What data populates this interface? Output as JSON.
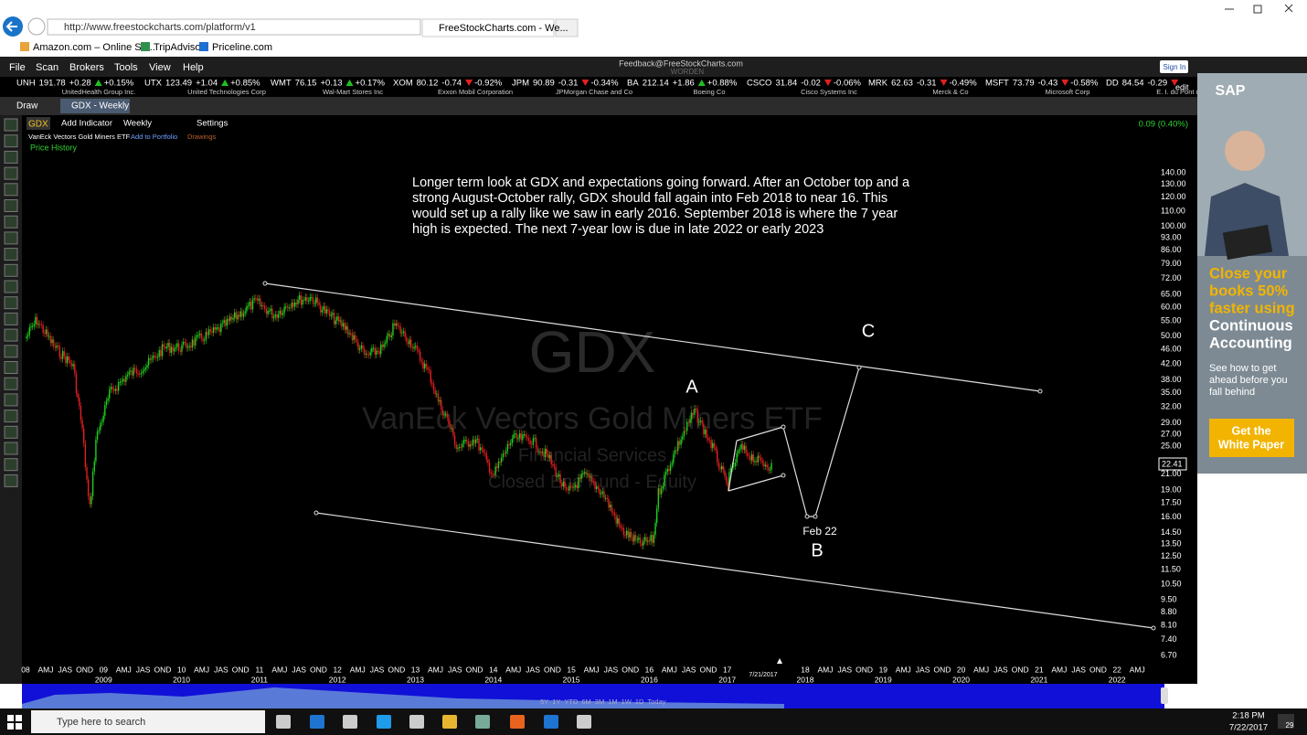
{
  "browser": {
    "url": "http://www.freestockcharts.com/platform/v1",
    "tab": "FreeStockCharts.com - We...",
    "favorites": [
      "Amazon.com – Online Sh...",
      "TripAdvisor",
      "Priceline.com"
    ]
  },
  "menu": {
    "items": [
      "File",
      "Scan",
      "Brokers",
      "Tools",
      "View",
      "Help"
    ],
    "feedback": "Feedback@FreeStockCharts.com",
    "brand": "WORDEN",
    "sign_in": "Sign In"
  },
  "ticker": [
    {
      "symbol": "UNH",
      "price": "191.78",
      "change": "+0.28",
      "percent": "+0.15%",
      "company": "UnitedHealth Group Inc."
    },
    {
      "symbol": "UTX",
      "price": "123.49",
      "change": "+1.04",
      "percent": "+0.85%",
      "company": "United Technologies Corp"
    },
    {
      "symbol": "WMT",
      "price": "76.15",
      "change": "+0.13",
      "percent": "+0.17%",
      "company": "Wal-Mart Stores Inc"
    },
    {
      "symbol": "XOM",
      "price": "80.12",
      "change": "-0.74",
      "percent": "-0.92%",
      "company": "Exxon Mobil Corporation"
    },
    {
      "symbol": "JPM",
      "price": "90.89",
      "change": "-0.31",
      "percent": "-0.34%",
      "company": "JPMorgan Chase and Co"
    },
    {
      "symbol": "BA",
      "price": "212.14",
      "change": "+1.86",
      "percent": "+0.88%",
      "company": "Boeing Co"
    },
    {
      "symbol": "CSCO",
      "price": "31.84",
      "change": "-0.02",
      "percent": "-0.06%",
      "company": "Cisco Systems Inc"
    },
    {
      "symbol": "MRK",
      "price": "62.63",
      "change": "-0.31",
      "percent": "-0.49%",
      "company": "Merck & Co"
    },
    {
      "symbol": "MSFT",
      "price": "73.79",
      "change": "-0.43",
      "percent": "-0.58%",
      "company": "Microsoft Corp"
    },
    {
      "symbol": "DD",
      "price": "84.54",
      "change": "-0.29",
      "percent": "",
      "company": "E. I. du Pont de Nem"
    }
  ],
  "toolbar": {
    "draw": "Draw",
    "tab": "GDX - Weekly",
    "symbol": "GDX",
    "add_indicator": "Add Indicator",
    "period": "Weekly",
    "settings": "Settings",
    "name": "VanEck Vectors Gold Miners ETF",
    "add_to_portfolio": "Add to Portfolio",
    "drawings": "Drawings",
    "price_history": "Price History",
    "change": "0.09 (0.40%)",
    "edit": "edit"
  },
  "chart": {
    "watermark_symbol": "GDX",
    "watermark_name": "VanEck Vectors Gold Miners ETF",
    "watermark_sector": "Financial Services",
    "watermark_type": "Closed End Fund - Equity",
    "annotation": [
      "Longer term look at GDX and expectations going forward.  After an October top and a",
      "strong August-October rally, GDX should fall again into Feb 2018 to near 16.  This",
      "would set up a rally like we saw in early 2016. September 2018 is where the 7 year",
      "high is expected. The next 7-year low is due in late 2022 or early 2023"
    ],
    "label_a": "A",
    "label_b": "B",
    "label_c": "C",
    "label_feb": "Feb 22",
    "price_axis": [
      "140.00",
      "130.00",
      "120.00",
      "110.00",
      "100.00",
      "93.00",
      "86.00",
      "79.00",
      "72.00",
      "65.00",
      "60.00",
      "55.00",
      "50.00",
      "46.00",
      "42.00",
      "38.00",
      "35.00",
      "32.00",
      "29.00",
      "27.00",
      "25.00",
      "21.00",
      "19.00",
      "17.50",
      "16.00",
      "14.50",
      "13.50",
      "12.50",
      "11.50",
      "10.50",
      "9.50",
      "8.80",
      "8.10",
      "7.40",
      "6.70"
    ],
    "last_price": "22.41",
    "date_axis": {
      "short_years": [
        "08",
        "09",
        "10",
        "11",
        "12",
        "13",
        "14",
        "15",
        "16",
        "17",
        "18",
        "19",
        "20",
        "21",
        "22"
      ],
      "quarters": [
        "AMJ",
        "JAS",
        "OND"
      ],
      "years": [
        "2009",
        "2010",
        "2011",
        "2012",
        "2013",
        "2014",
        "2015",
        "2016",
        "2017",
        "2018",
        "2019",
        "2020",
        "2021",
        "2022"
      ],
      "current_date": "7/21/2017"
    },
    "range_buttons": [
      "5Y",
      "1Y",
      "YTD",
      "6M",
      "3M",
      "1M",
      "1W",
      "1D",
      "Today"
    ]
  },
  "ad": {
    "brand": "SAP",
    "headline": [
      "Close your",
      "books 50%",
      "faster using",
      "Continuous",
      "Accounting"
    ],
    "sub": [
      "See how to get",
      "ahead before you",
      "fall behind"
    ],
    "button": [
      "Get the",
      "White Paper"
    ]
  },
  "taskbar": {
    "search": "Type here to search",
    "time": "2:18 PM",
    "date": "7/22/2017",
    "notifications": "29"
  }
}
